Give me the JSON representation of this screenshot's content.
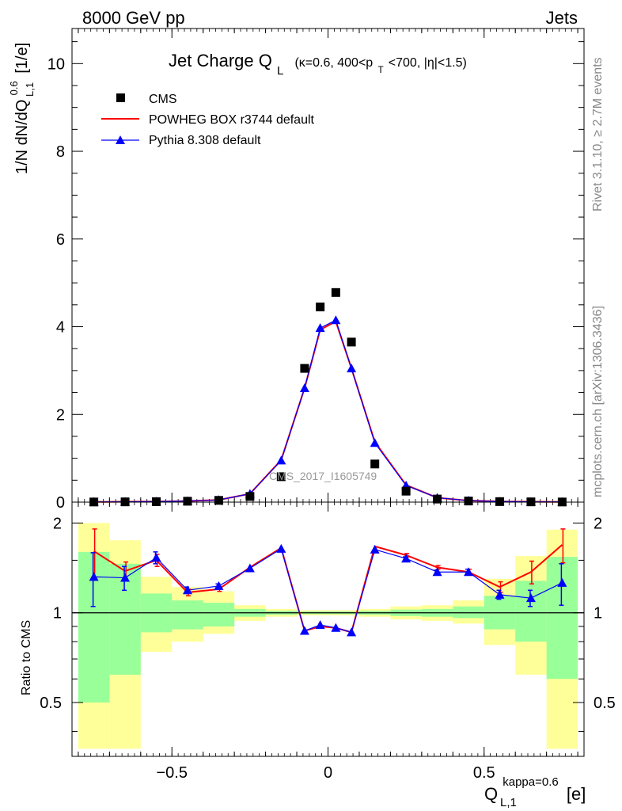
{
  "header": {
    "left": "8000 GeV pp",
    "right": "Jets",
    "side_top": "Rivet 3.1.10, ≥ 2.7M events",
    "side_bottom": "mcplots.cern.ch [arXiv:1306.3436]",
    "watermark": "CMS_2017_I1605749"
  },
  "chart_data": [
    {
      "type": "scatter",
      "title": "Jet Charge Q",
      "title_sub": "L",
      "title_extra": "(κ=0.6, 400<p",
      "title_extra_sub": "T",
      "title_extra_tail": "<700, |η|<1.5)",
      "ylabel": "1/N dN/dQ",
      "ylabel_sup": "0.6",
      "ylabel_sub": "L,1",
      "ylabel_unit": "[1/e]",
      "xlim": [
        -0.82,
        0.82
      ],
      "ylim": [
        0,
        10.8
      ],
      "yticks": [
        0,
        2,
        4,
        6,
        8,
        10
      ],
      "grid": false,
      "legend_position": "top-left",
      "colors": {
        "cms": "#000000",
        "powheg": "#ff0000",
        "pythia": "#0000ff"
      },
      "x": [
        -0.75,
        -0.65,
        -0.55,
        -0.45,
        -0.35,
        -0.25,
        -0.15,
        -0.075,
        -0.025,
        0.025,
        0.075,
        0.15,
        0.25,
        0.35,
        0.45,
        0.55,
        0.65,
        0.75
      ],
      "series": [
        {
          "name": "CMS",
          "style": "markers",
          "values": [
            0.003,
            0.006,
            0.01,
            0.02,
            0.04,
            0.13,
            0.58,
            3.05,
            4.45,
            4.78,
            3.65,
            0.87,
            0.25,
            0.07,
            0.025,
            0.012,
            0.006,
            0.003
          ]
        },
        {
          "name": "POWHEG BOX r3744 default",
          "style": "line",
          "values": [
            0.005,
            0.008,
            0.014,
            0.024,
            0.05,
            0.19,
            0.96,
            2.6,
            3.93,
            4.12,
            3.05,
            1.37,
            0.39,
            0.1,
            0.035,
            0.015,
            0.008,
            0.005
          ]
        },
        {
          "name": "Pythia 8.308 default",
          "style": "line+triangles",
          "values": [
            0.004,
            0.008,
            0.015,
            0.024,
            0.05,
            0.19,
            0.95,
            2.6,
            3.97,
            4.15,
            3.05,
            1.35,
            0.38,
            0.1,
            0.035,
            0.014,
            0.007,
            0.004
          ]
        }
      ]
    },
    {
      "type": "line",
      "ylabel": "Ratio to CMS",
      "ylim": [
        0.33,
        2.35
      ],
      "log_y": true,
      "yticks": [
        0.5,
        1,
        2
      ],
      "xticks": [
        -0.5,
        0,
        0.5
      ],
      "xlabel": "Q",
      "xlabel_sup": "kappa=0.6",
      "xlabel_sub": "L,1",
      "xlabel_unit": "[e]",
      "bin_edges": [
        -0.8,
        -0.7,
        -0.6,
        -0.5,
        -0.4,
        -0.3,
        -0.2,
        -0.1,
        -0.05,
        0,
        0.05,
        0.1,
        0.2,
        0.3,
        0.4,
        0.5,
        0.6,
        0.7,
        0.8
      ],
      "band_yellow": [
        [
          0.35,
          2.0
        ],
        [
          0.35,
          1.75
        ],
        [
          0.74,
          1.32
        ],
        [
          0.8,
          1.22
        ],
        [
          0.85,
          1.18
        ],
        [
          0.94,
          1.06
        ],
        [
          0.97,
          1.03
        ],
        [
          0.98,
          1.02
        ],
        [
          0.98,
          1.02
        ],
        [
          0.98,
          1.02
        ],
        [
          0.98,
          1.02
        ],
        [
          0.97,
          1.03
        ],
        [
          0.95,
          1.05
        ],
        [
          0.94,
          1.06
        ],
        [
          0.92,
          1.1
        ],
        [
          0.78,
          1.3
        ],
        [
          0.62,
          1.55
        ],
        [
          0.35,
          1.9
        ]
      ],
      "band_green": [
        [
          0.5,
          1.6
        ],
        [
          0.62,
          1.46
        ],
        [
          0.86,
          1.16
        ],
        [
          0.88,
          1.1
        ],
        [
          0.9,
          1.08
        ],
        [
          0.97,
          1.03
        ],
        [
          0.985,
          1.015
        ],
        [
          0.99,
          1.01
        ],
        [
          0.99,
          1.01
        ],
        [
          0.99,
          1.01
        ],
        [
          0.99,
          1.01
        ],
        [
          0.985,
          1.015
        ],
        [
          0.975,
          1.025
        ],
        [
          0.97,
          1.03
        ],
        [
          0.96,
          1.05
        ],
        [
          0.88,
          1.14
        ],
        [
          0.8,
          1.28
        ],
        [
          0.6,
          1.54
        ]
      ],
      "x": [
        -0.75,
        -0.65,
        -0.55,
        -0.45,
        -0.35,
        -0.25,
        -0.15,
        -0.075,
        -0.025,
        0.025,
        0.075,
        0.15,
        0.25,
        0.35,
        0.45,
        0.55,
        0.65,
        0.75
      ],
      "series": [
        {
          "name": "POWHEG BOX r3744 default",
          "values": [
            1.61,
            1.38,
            1.5,
            1.17,
            1.2,
            1.42,
            1.65,
            0.87,
            0.9,
            0.89,
            0.86,
            1.67,
            1.56,
            1.42,
            1.37,
            1.22,
            1.37,
            1.69
          ],
          "err": [
            0.3,
            0.1,
            0.07,
            0.03,
            0.02,
            0.015,
            0.01,
            0.005,
            0.005,
            0.005,
            0.005,
            0.01,
            0.02,
            0.02,
            0.03,
            0.05,
            0.12,
            0.22
          ]
        },
        {
          "name": "Pythia 8.308 default",
          "values": [
            1.32,
            1.31,
            1.53,
            1.19,
            1.23,
            1.41,
            1.64,
            0.87,
            0.91,
            0.89,
            0.86,
            1.63,
            1.52,
            1.37,
            1.37,
            1.15,
            1.12,
            1.26
          ],
          "err": [
            0.27,
            0.12,
            0.07,
            0.03,
            0.02,
            0.015,
            0.01,
            0.005,
            0.005,
            0.005,
            0.005,
            0.01,
            0.02,
            0.02,
            0.03,
            0.04,
            0.07,
            0.2
          ]
        }
      ]
    }
  ]
}
